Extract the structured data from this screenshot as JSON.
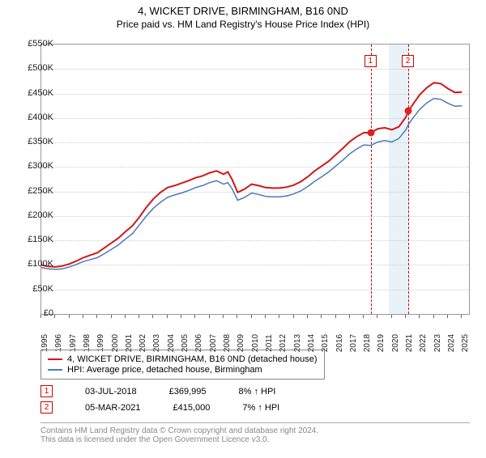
{
  "title": "4, WICKET DRIVE, BIRMINGHAM, B16 0ND",
  "subtitle": "Price paid vs. HM Land Registry's House Price Index (HPI)",
  "chart": {
    "type": "line",
    "background_color": "#ffffff",
    "grid_color": "#cccccc",
    "border_color": "#999999",
    "xlim": [
      1995,
      2025.5
    ],
    "ylim": [
      0,
      550000
    ],
    "ytick_step": 50000,
    "yticks": [
      {
        "v": 0,
        "label": "£0"
      },
      {
        "v": 50000,
        "label": "£50K"
      },
      {
        "v": 100000,
        "label": "£100K"
      },
      {
        "v": 150000,
        "label": "£150K"
      },
      {
        "v": 200000,
        "label": "£200K"
      },
      {
        "v": 250000,
        "label": "£250K"
      },
      {
        "v": 300000,
        "label": "£300K"
      },
      {
        "v": 350000,
        "label": "£350K"
      },
      {
        "v": 400000,
        "label": "£400K"
      },
      {
        "v": 450000,
        "label": "£450K"
      },
      {
        "v": 500000,
        "label": "£500K"
      },
      {
        "v": 550000,
        "label": "£550K"
      }
    ],
    "xticks": [
      1995,
      1996,
      1997,
      1998,
      1999,
      2000,
      2001,
      2002,
      2003,
      2004,
      2005,
      2006,
      2007,
      2008,
      2009,
      2010,
      2011,
      2012,
      2013,
      2014,
      2015,
      2016,
      2017,
      2018,
      2019,
      2020,
      2021,
      2022,
      2023,
      2024,
      2025
    ],
    "series_red": {
      "label": "4, WICKET DRIVE, BIRMINGHAM, B16 0ND (detached house)",
      "color": "#d01818",
      "line_width": 2,
      "data": [
        [
          1995,
          100000
        ],
        [
          1995.5,
          97000
        ],
        [
          1996,
          96000
        ],
        [
          1996.5,
          98000
        ],
        [
          1997,
          102000
        ],
        [
          1997.5,
          108000
        ],
        [
          1998,
          115000
        ],
        [
          1998.5,
          120000
        ],
        [
          1999,
          125000
        ],
        [
          1999.5,
          135000
        ],
        [
          2000,
          145000
        ],
        [
          2000.5,
          155000
        ],
        [
          2001,
          168000
        ],
        [
          2001.5,
          180000
        ],
        [
          2002,
          198000
        ],
        [
          2002.5,
          218000
        ],
        [
          2003,
          235000
        ],
        [
          2003.5,
          248000
        ],
        [
          2004,
          258000
        ],
        [
          2004.5,
          262000
        ],
        [
          2005,
          267000
        ],
        [
          2005.5,
          272000
        ],
        [
          2006,
          278000
        ],
        [
          2006.5,
          282000
        ],
        [
          2007,
          288000
        ],
        [
          2007.5,
          292000
        ],
        [
          2008,
          285000
        ],
        [
          2008.3,
          290000
        ],
        [
          2008.6,
          275000
        ],
        [
          2009,
          248000
        ],
        [
          2009.5,
          255000
        ],
        [
          2010,
          265000
        ],
        [
          2010.5,
          262000
        ],
        [
          2011,
          258000
        ],
        [
          2011.5,
          257000
        ],
        [
          2012,
          257000
        ],
        [
          2012.5,
          259000
        ],
        [
          2013,
          263000
        ],
        [
          2013.5,
          270000
        ],
        [
          2014,
          280000
        ],
        [
          2014.5,
          292000
        ],
        [
          2015,
          302000
        ],
        [
          2015.5,
          312000
        ],
        [
          2016,
          325000
        ],
        [
          2016.5,
          338000
        ],
        [
          2017,
          352000
        ],
        [
          2017.5,
          362000
        ],
        [
          2018,
          370000
        ],
        [
          2018.5,
          369995
        ],
        [
          2019,
          378000
        ],
        [
          2019.5,
          380000
        ],
        [
          2020,
          376000
        ],
        [
          2020.5,
          382000
        ],
        [
          2021,
          402000
        ],
        [
          2021.2,
          415000
        ],
        [
          2021.5,
          428000
        ],
        [
          2022,
          448000
        ],
        [
          2022.5,
          462000
        ],
        [
          2023,
          472000
        ],
        [
          2023.5,
          470000
        ],
        [
          2024,
          460000
        ],
        [
          2024.5,
          452000
        ],
        [
          2025,
          453000
        ]
      ]
    },
    "series_blue": {
      "label": "HPI: Average price, detached house, Birmingham",
      "color": "#4a7ab8",
      "line_width": 1.5,
      "data": [
        [
          1995,
          95000
        ],
        [
          1995.5,
          92000
        ],
        [
          1996,
          91000
        ],
        [
          1996.5,
          92000
        ],
        [
          1997,
          96000
        ],
        [
          1997.5,
          101000
        ],
        [
          1998,
          107000
        ],
        [
          1998.5,
          111000
        ],
        [
          1999,
          115000
        ],
        [
          1999.5,
          123000
        ],
        [
          2000,
          132000
        ],
        [
          2000.5,
          141000
        ],
        [
          2001,
          153000
        ],
        [
          2001.5,
          164000
        ],
        [
          2002,
          182000
        ],
        [
          2002.5,
          200000
        ],
        [
          2003,
          216000
        ],
        [
          2003.5,
          228000
        ],
        [
          2004,
          238000
        ],
        [
          2004.5,
          243000
        ],
        [
          2005,
          247000
        ],
        [
          2005.5,
          252000
        ],
        [
          2006,
          258000
        ],
        [
          2006.5,
          262000
        ],
        [
          2007,
          268000
        ],
        [
          2007.5,
          272000
        ],
        [
          2008,
          265000
        ],
        [
          2008.3,
          268000
        ],
        [
          2008.6,
          256000
        ],
        [
          2009,
          232000
        ],
        [
          2009.5,
          238000
        ],
        [
          2010,
          247000
        ],
        [
          2010.5,
          244000
        ],
        [
          2011,
          240000
        ],
        [
          2011.5,
          239000
        ],
        [
          2012,
          239000
        ],
        [
          2012.5,
          241000
        ],
        [
          2013,
          245000
        ],
        [
          2013.5,
          251000
        ],
        [
          2014,
          260000
        ],
        [
          2014.5,
          271000
        ],
        [
          2015,
          280000
        ],
        [
          2015.5,
          290000
        ],
        [
          2016,
          302000
        ],
        [
          2016.5,
          314000
        ],
        [
          2017,
          327000
        ],
        [
          2017.5,
          337000
        ],
        [
          2018,
          345000
        ],
        [
          2018.5,
          344000
        ],
        [
          2019,
          351000
        ],
        [
          2019.5,
          354000
        ],
        [
          2020,
          351000
        ],
        [
          2020.5,
          358000
        ],
        [
          2021,
          376000
        ],
        [
          2021.2,
          388000
        ],
        [
          2021.5,
          400000
        ],
        [
          2022,
          418000
        ],
        [
          2022.5,
          431000
        ],
        [
          2023,
          440000
        ],
        [
          2023.5,
          438000
        ],
        [
          2024,
          430000
        ],
        [
          2024.5,
          424000
        ],
        [
          2025,
          425000
        ]
      ]
    },
    "shaded_regions": [
      {
        "start": 2019.8,
        "end": 2021.2,
        "color": "#dbe7f5"
      }
    ],
    "vertical_markers": [
      {
        "id": "1",
        "x": 2018.5,
        "color": "#cc0000"
      },
      {
        "id": "2",
        "x": 2021.17,
        "color": "#cc0000"
      }
    ],
    "marker_points": [
      {
        "x": 2018.5,
        "y": 369995,
        "color": "#e02020"
      },
      {
        "x": 2021.17,
        "y": 415000,
        "color": "#e02020"
      }
    ],
    "marker_label_top_y": 62,
    "title_fontsize": 13,
    "subtitle_fontsize": 12,
    "label_fontsize": 11
  },
  "legend": {
    "rows": [
      {
        "color": "#d01818",
        "text": "4, WICKET DRIVE, BIRMINGHAM, B16 0ND (detached house)"
      },
      {
        "color": "#4a7ab8",
        "text": "HPI: Average price, detached house, Birmingham"
      }
    ]
  },
  "sales": [
    {
      "id": "1",
      "date": "03-JUL-2018",
      "price": "£369,995",
      "delta": "8% ↑ HPI"
    },
    {
      "id": "2",
      "date": "05-MAR-2021",
      "price": "£415,000",
      "delta": "7% ↑ HPI"
    }
  ],
  "footer": {
    "line1": "Contains HM Land Registry data © Crown copyright and database right 2024.",
    "line2": "This data is licensed under the Open Government Licence v3.0."
  }
}
